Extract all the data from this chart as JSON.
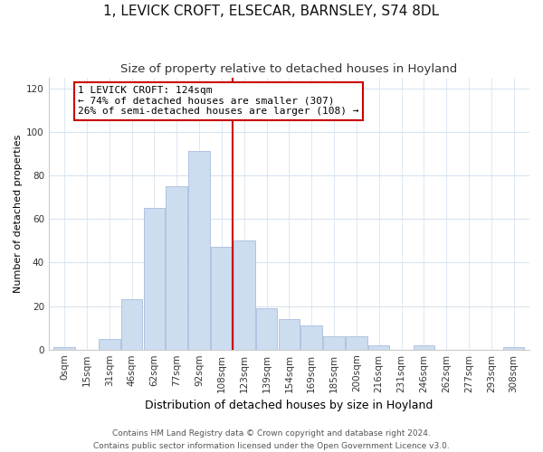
{
  "title": "1, LEVICK CROFT, ELSECAR, BARNSLEY, S74 8DL",
  "subtitle": "Size of property relative to detached houses in Hoyland",
  "xlabel": "Distribution of detached houses by size in Hoyland",
  "ylabel": "Number of detached properties",
  "bar_labels": [
    "0sqm",
    "15sqm",
    "31sqm",
    "46sqm",
    "62sqm",
    "77sqm",
    "92sqm",
    "108sqm",
    "123sqm",
    "139sqm",
    "154sqm",
    "169sqm",
    "185sqm",
    "200sqm",
    "216sqm",
    "231sqm",
    "246sqm",
    "262sqm",
    "277sqm",
    "293sqm",
    "308sqm"
  ],
  "bar_values": [
    1,
    0,
    5,
    23,
    65,
    75,
    91,
    47,
    50,
    19,
    14,
    11,
    6,
    6,
    2,
    0,
    2,
    0,
    0,
    0,
    1
  ],
  "bar_color": "#ccddf0",
  "bar_edge_color": "#aabbdd",
  "marker_bin_index": 8,
  "marker_line_color": "#cc0000",
  "annotation_text": "1 LEVICK CROFT: 124sqm\n← 74% of detached houses are smaller (307)\n26% of semi-detached houses are larger (108) →",
  "annotation_box_color": "#ffffff",
  "annotation_box_edge_color": "#cc0000",
  "ylim": [
    0,
    125
  ],
  "yticks": [
    0,
    20,
    40,
    60,
    80,
    100,
    120
  ],
  "footer_line1": "Contains HM Land Registry data © Crown copyright and database right 2024.",
  "footer_line2": "Contains public sector information licensed under the Open Government Licence v3.0.",
  "background_color": "#ffffff",
  "grid_color": "#d8e4f0",
  "title_fontsize": 11,
  "subtitle_fontsize": 9.5,
  "xlabel_fontsize": 9,
  "ylabel_fontsize": 8,
  "tick_fontsize": 7.5,
  "annotation_fontsize": 8,
  "footer_fontsize": 6.5
}
